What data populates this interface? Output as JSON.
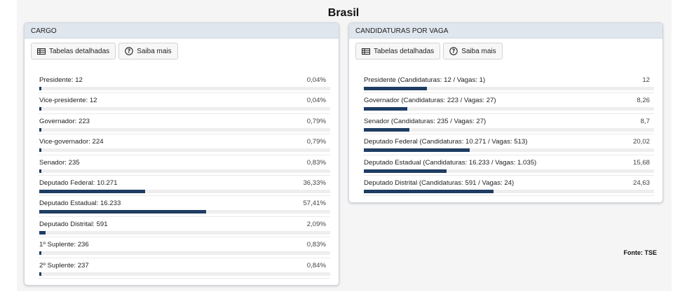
{
  "page": {
    "title": "Brasil",
    "source": "Fonte: TSE",
    "accent_color": "#1f3d63"
  },
  "buttons": {
    "detailed_tables": "Tabelas detalhadas",
    "learn_more": "Saiba mais"
  },
  "cargo": {
    "header": "CARGO",
    "rows": [
      {
        "label": "Presidente: 12",
        "value": "0,04%",
        "percent": 0.04
      },
      {
        "label": "Vice-presidente: 12",
        "value": "0,04%",
        "percent": 0.04
      },
      {
        "label": "Governador: 223",
        "value": "0,79%",
        "percent": 0.79
      },
      {
        "label": "Vice-governador: 224",
        "value": "0,79%",
        "percent": 0.79
      },
      {
        "label": "Senador: 235",
        "value": "0,83%",
        "percent": 0.83
      },
      {
        "label": "Deputado Federal: 10.271",
        "value": "36,33%",
        "percent": 36.33
      },
      {
        "label": "Deputado Estadual: 16.233",
        "value": "57,41%",
        "percent": 57.41
      },
      {
        "label": "Deputado Distrital: 591",
        "value": "2,09%",
        "percent": 2.09
      },
      {
        "label": "1º Suplente: 236",
        "value": "0,83%",
        "percent": 0.83
      },
      {
        "label": "2º Suplente: 237",
        "value": "0,84%",
        "percent": 0.84
      }
    ]
  },
  "candidaturas": {
    "header": "CANDIDATURAS POR VAGA",
    "rows": [
      {
        "label": "Presidente (Candidaturas: 12 / Vagas: 1)",
        "value": "12",
        "ratio": 12
      },
      {
        "label": "Governador (Candidaturas: 223 / Vagas: 27)",
        "value": "8,26",
        "ratio": 8.26
      },
      {
        "label": "Senador (Candidaturas: 235 / Vagas: 27)",
        "value": "8,7",
        "ratio": 8.7
      },
      {
        "label": "Deputado Federal (Candidaturas: 10.271 / Vagas: 513)",
        "value": "20,02",
        "ratio": 20.02
      },
      {
        "label": "Deputado Estadual (Candidaturas: 16.233 / Vagas: 1.035)",
        "value": "15,68",
        "ratio": 15.68
      },
      {
        "label": "Deputado Distrital (Candidaturas: 591 / Vagas: 24)",
        "value": "24,63",
        "ratio": 24.63
      }
    ]
  }
}
